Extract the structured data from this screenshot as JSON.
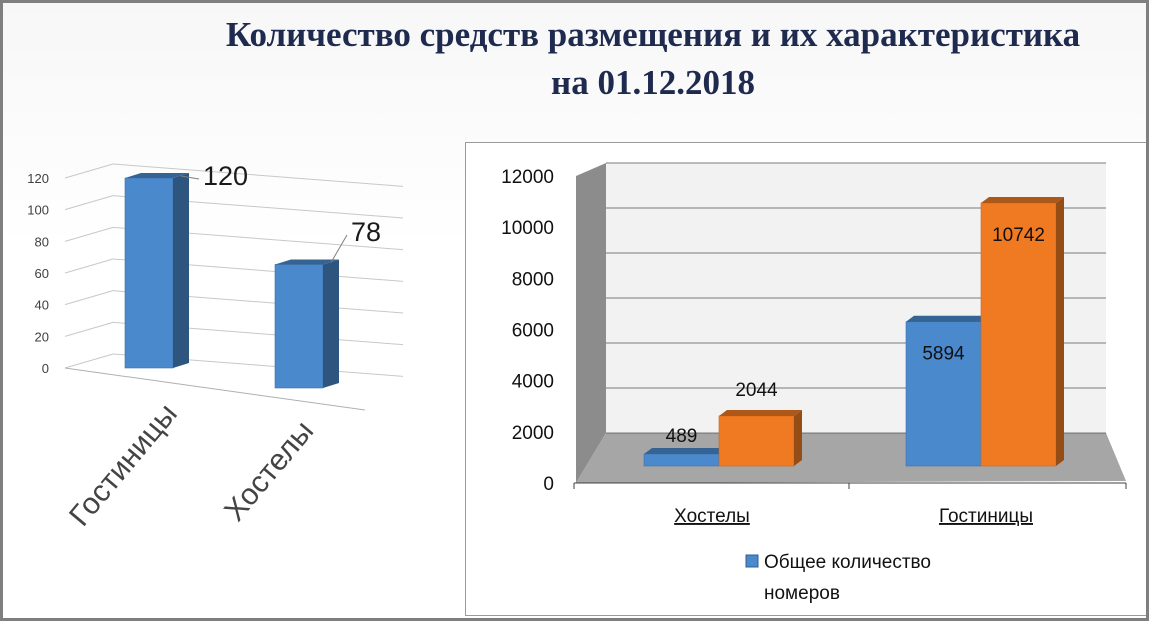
{
  "title": {
    "line1": "Количество средств размещения и их характеристика",
    "line2": "на 01.12.2018"
  },
  "colors": {
    "blue": "#4a89cc",
    "orange": "#f07a22",
    "title": "#1f2a4f"
  },
  "chart_data": [
    {
      "type": "bar",
      "categories": [
        "Гостиницы",
        "Хостелы"
      ],
      "values": [
        120,
        78
      ],
      "ylim": [
        0,
        120
      ],
      "yticks": [
        "0",
        "20",
        "40",
        "60",
        "80",
        "100",
        "120"
      ],
      "data_labels": [
        "120",
        "78"
      ],
      "grid": true,
      "legend": "none"
    },
    {
      "type": "bar",
      "categories": [
        "Хостелы",
        "Гостиницы"
      ],
      "series": [
        {
          "name": "Общее количество номеров",
          "values": [
            489,
            5894
          ],
          "labels": [
            "489",
            "5894"
          ]
        },
        {
          "values": [
            2044,
            10742
          ],
          "labels": [
            "2044",
            "10742"
          ]
        }
      ],
      "ylim": [
        0,
        12000
      ],
      "yticks": [
        "0",
        "2000",
        "4000",
        "6000",
        "8000",
        "10000",
        "12000"
      ],
      "grid": true,
      "legend": "bottom",
      "legend_items": [
        {
          "line1": "Общее количество",
          "line2": "номеров"
        }
      ]
    }
  ]
}
